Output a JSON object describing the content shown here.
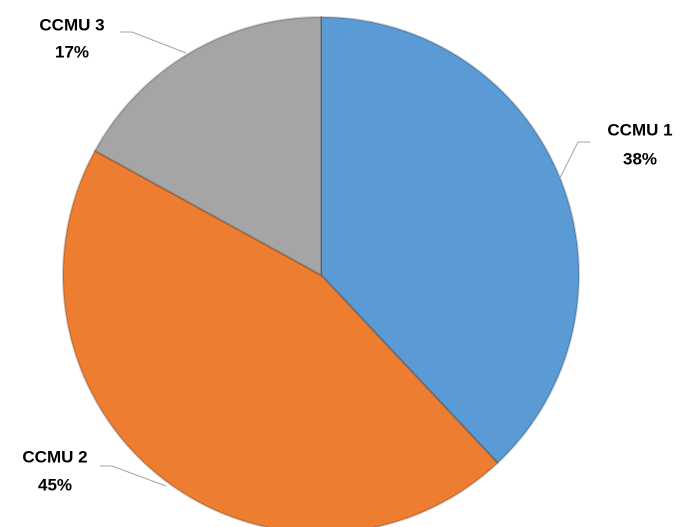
{
  "chart_data": {
    "type": "pie",
    "categories": [
      "CCMU 1",
      "CCMU 2",
      "CCMU 3"
    ],
    "values": [
      38,
      45,
      17
    ],
    "value_labels": [
      "38%",
      "45%",
      "17%"
    ],
    "colors": [
      "#5b9bd5",
      "#ed7d31",
      "#a5a5a5"
    ]
  }
}
